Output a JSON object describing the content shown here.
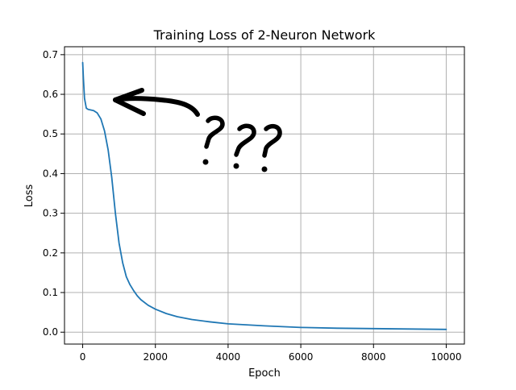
{
  "chart_data": {
    "type": "line",
    "title": "Training Loss of 2-Neuron Network",
    "xlabel": "Epoch",
    "ylabel": "Loss",
    "xlim": [
      -500,
      10500
    ],
    "ylim": [
      -0.03,
      0.72
    ],
    "xticks": [
      0,
      2000,
      4000,
      6000,
      8000,
      10000
    ],
    "xtick_labels": [
      "0",
      "2000",
      "4000",
      "6000",
      "8000",
      "10000"
    ],
    "yticks": [
      0.0,
      0.1,
      0.2,
      0.3,
      0.4,
      0.5,
      0.6,
      0.7
    ],
    "ytick_labels": [
      "0.0",
      "0.1",
      "0.2",
      "0.3",
      "0.4",
      "0.5",
      "0.6",
      "0.7"
    ],
    "grid": true,
    "series": [
      {
        "color": "#1f77b4",
        "x": [
          0,
          20,
          50,
          100,
          150,
          200,
          300,
          400,
          500,
          600,
          700,
          800,
          900,
          1000,
          1100,
          1200,
          1300,
          1400,
          1500,
          1600,
          1800,
          2000,
          2300,
          2600,
          3000,
          3500,
          4000,
          5000,
          6000,
          7000,
          8000,
          9000,
          10000
        ],
        "y": [
          0.68,
          0.64,
          0.59,
          0.565,
          0.562,
          0.561,
          0.559,
          0.553,
          0.538,
          0.508,
          0.46,
          0.39,
          0.3,
          0.225,
          0.175,
          0.14,
          0.12,
          0.105,
          0.092,
          0.082,
          0.068,
          0.058,
          0.047,
          0.039,
          0.032,
          0.026,
          0.021,
          0.016,
          0.012,
          0.01,
          0.009,
          0.008,
          0.007
        ]
      }
    ],
    "annotations": {
      "handwritten": "??"
    }
  },
  "colors": {
    "line": "#1f77b4",
    "grid": "#b0b0b0",
    "axes": "#000000",
    "ink": "#000000"
  }
}
